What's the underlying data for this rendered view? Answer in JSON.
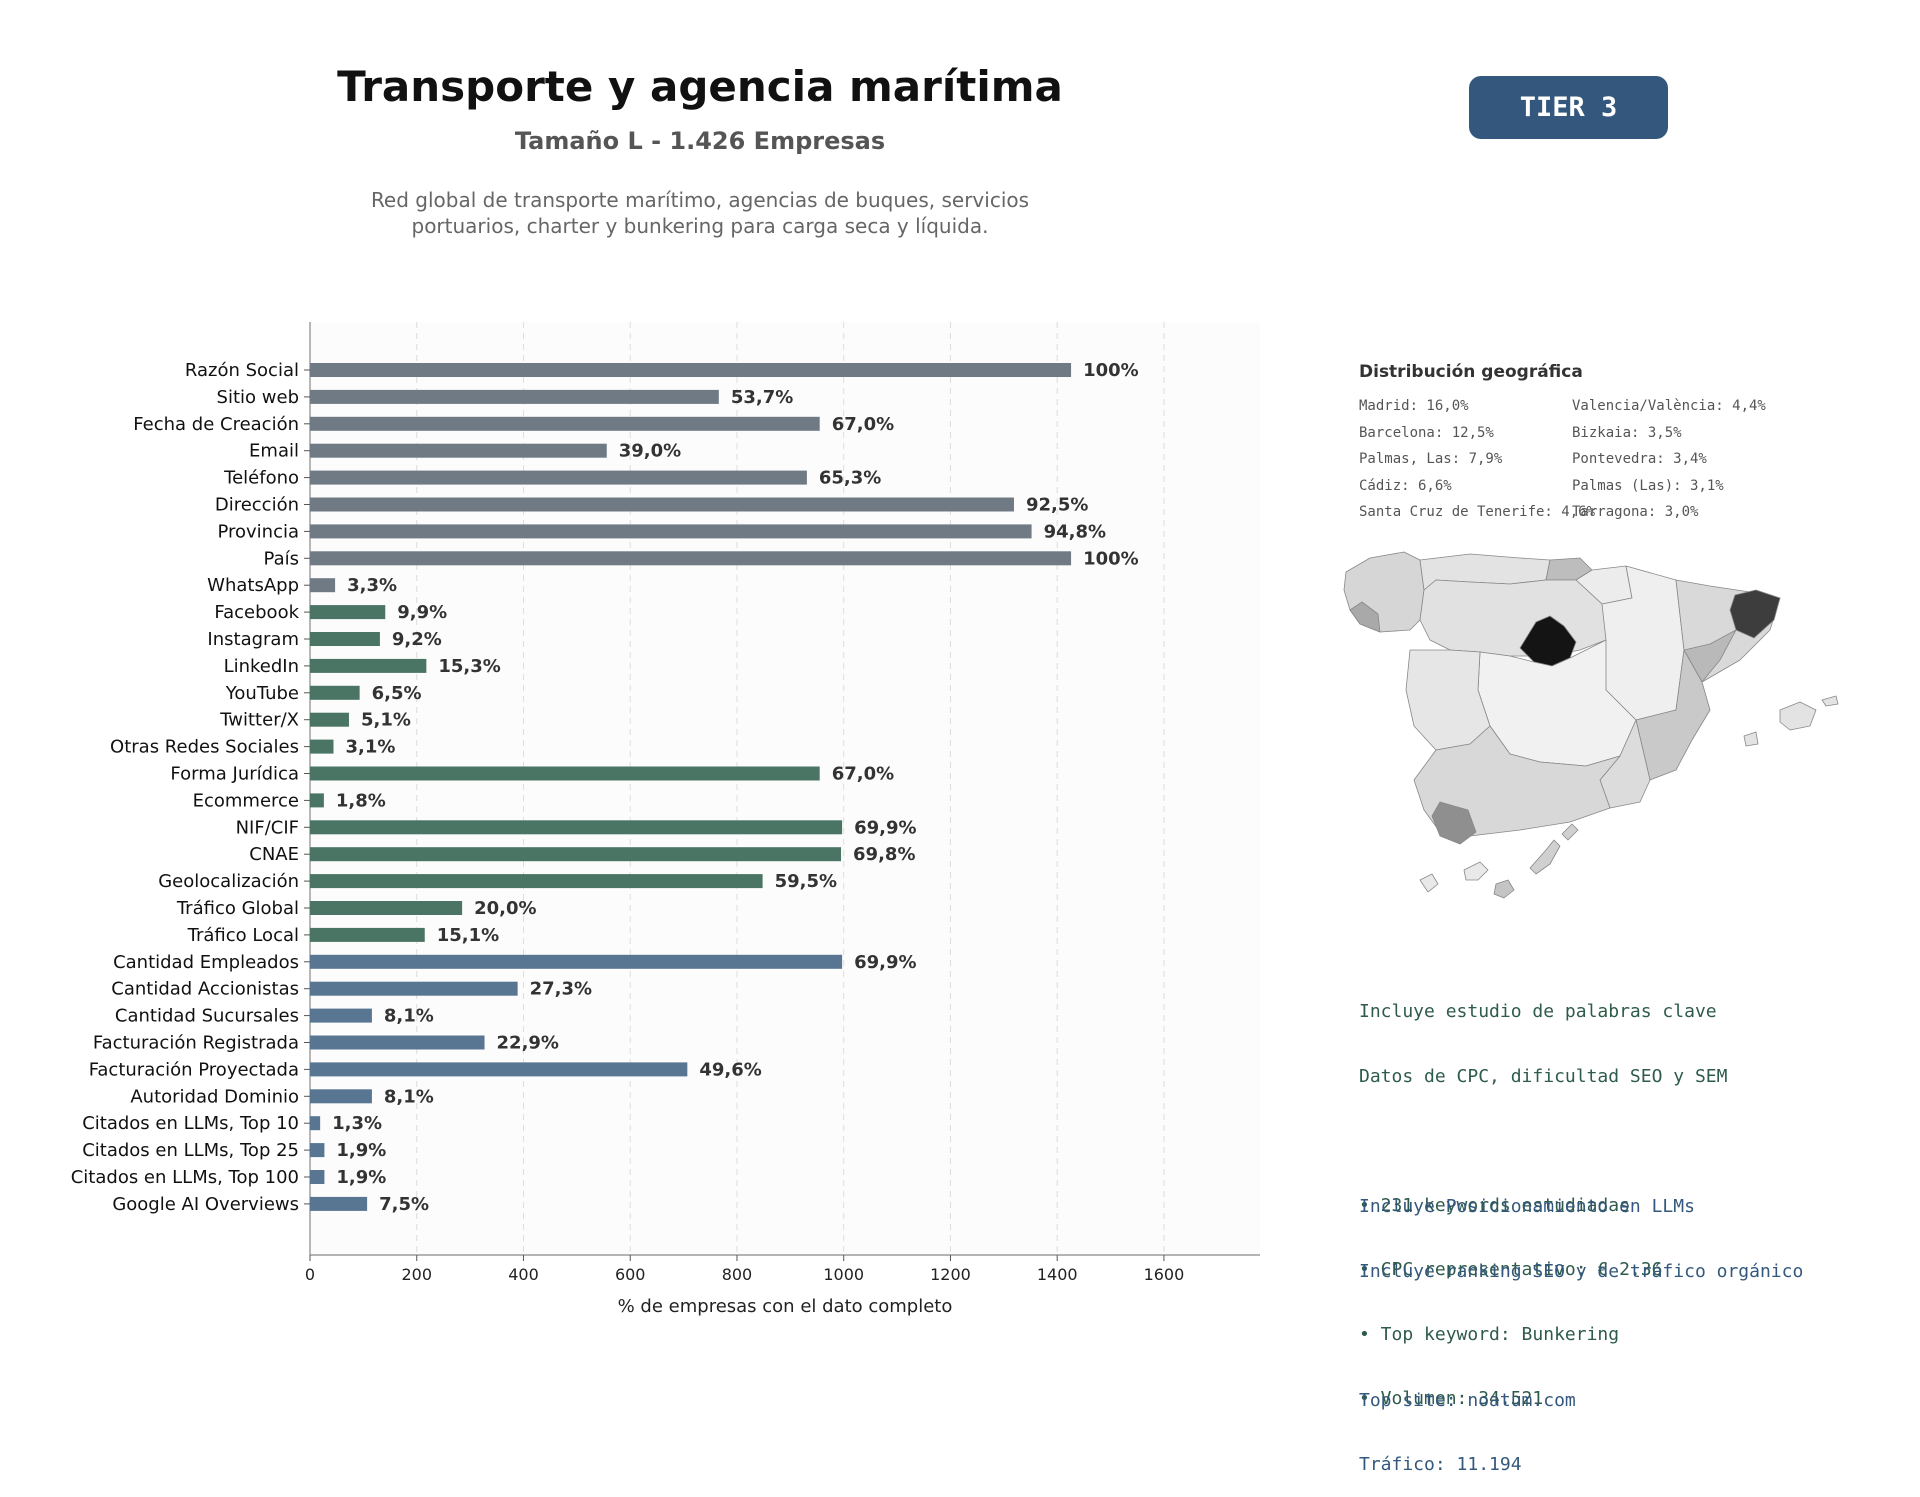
{
  "header": {
    "title": "Transporte y agencia marítima",
    "subtitle": "Tamaño L - 1.426 Empresas",
    "description_lines": [
      "Red global de transporte marítimo, agencias de buques, servicios",
      "portuarios, charter y bunkering para carga seca y líquida."
    ],
    "tier": "TIER 3"
  },
  "colors": {
    "gray": "#6f7a84",
    "green": "#4a7464",
    "blue": "#587592",
    "badge": "#34587d",
    "keywords_text": "#2e5b4a",
    "llm_text": "#34587d"
  },
  "chart_data": {
    "type": "bar",
    "orientation": "horizontal",
    "xlabel": "% de empresas con el dato completo",
    "xlim": [
      0,
      1780
    ],
    "xticks": [
      0,
      200,
      400,
      600,
      800,
      1000,
      1200,
      1400,
      1600
    ],
    "grid": "vertical dashed",
    "categories": [
      "Razón Social",
      "Sitio web",
      "Fecha de Creación",
      "Email",
      "Teléfono",
      "Dirección",
      "Provincia",
      "País",
      "WhatsApp",
      "Facebook",
      "Instagram",
      "LinkedIn",
      "YouTube",
      "Twitter/X",
      "Otras Redes Sociales",
      "Forma Jurídica",
      "Ecommerce",
      "NIF/CIF",
      "CNAE",
      "Geolocalización",
      "Tráfico Global",
      "Tráfico Local",
      "Cantidad Empleados",
      "Cantidad Accionistas",
      "Cantidad Sucursales",
      "Facturación Registrada",
      "Facturación Proyectada",
      "Autoridad Dominio",
      "Citados en LLMs, Top 10",
      "Citados en LLMs, Top 25",
      "Citados en LLMs, Top 100",
      "Google AI Overviews"
    ],
    "values": [
      1426,
      766,
      955,
      556,
      931,
      1319,
      1352,
      1426,
      47,
      141,
      131,
      218,
      93,
      73,
      44,
      955,
      26,
      997,
      995,
      848,
      285,
      215,
      997,
      389,
      116,
      327,
      707,
      116,
      19,
      27,
      27,
      107
    ],
    "labels": [
      "100%",
      "53,7%",
      "67,0%",
      "39,0%",
      "65,3%",
      "92,5%",
      "94,8%",
      "100%",
      "3,3%",
      "9,9%",
      "9,2%",
      "15,3%",
      "6,5%",
      "5,1%",
      "3,1%",
      "67,0%",
      "1,8%",
      "69,9%",
      "69,8%",
      "59,5%",
      "20,0%",
      "15,1%",
      "69,9%",
      "27,3%",
      "8,1%",
      "22,9%",
      "49,6%",
      "8,1%",
      "1,3%",
      "1,9%",
      "1,9%",
      "7,5%"
    ],
    "groups": [
      "gray",
      "gray",
      "gray",
      "gray",
      "gray",
      "gray",
      "gray",
      "gray",
      "gray",
      "green",
      "green",
      "green",
      "green",
      "green",
      "green",
      "green",
      "green",
      "green",
      "green",
      "green",
      "green",
      "green",
      "blue",
      "blue",
      "blue",
      "blue",
      "blue",
      "blue",
      "blue",
      "blue",
      "blue",
      "blue"
    ]
  },
  "geo": {
    "title": "Distribución geográfica",
    "col1": [
      "Madrid: 16,0%",
      "Barcelona: 12,5%",
      "Palmas, Las: 7,9%",
      "Cádiz: 6,6%",
      "Santa Cruz de Tenerife: 4,6%"
    ],
    "col2": [
      "Valencia/València: 4,4%",
      "Bizkaia: 3,5%",
      "Pontevedra: 3,4%",
      "Palmas (Las): 3,1%",
      "Tarragona: 3,0%"
    ]
  },
  "keywords": {
    "lines": [
      "Incluye estudio de palabras clave",
      "Datos de CPC, dificultad SEO y SEM",
      "",
      "• 231 keywords estudiadas",
      "• CPC representativo: € 2.36",
      "• Top keyword: Bunkering",
      "• Volumen: 34.521"
    ]
  },
  "llm": {
    "lines": [
      "Incluye Posicionamiento en LLMs",
      "Incluye ranking SEO y de tráfico orgánico",
      "",
      "Top site: noatum.com",
      "Tráfico: 11.194"
    ]
  }
}
